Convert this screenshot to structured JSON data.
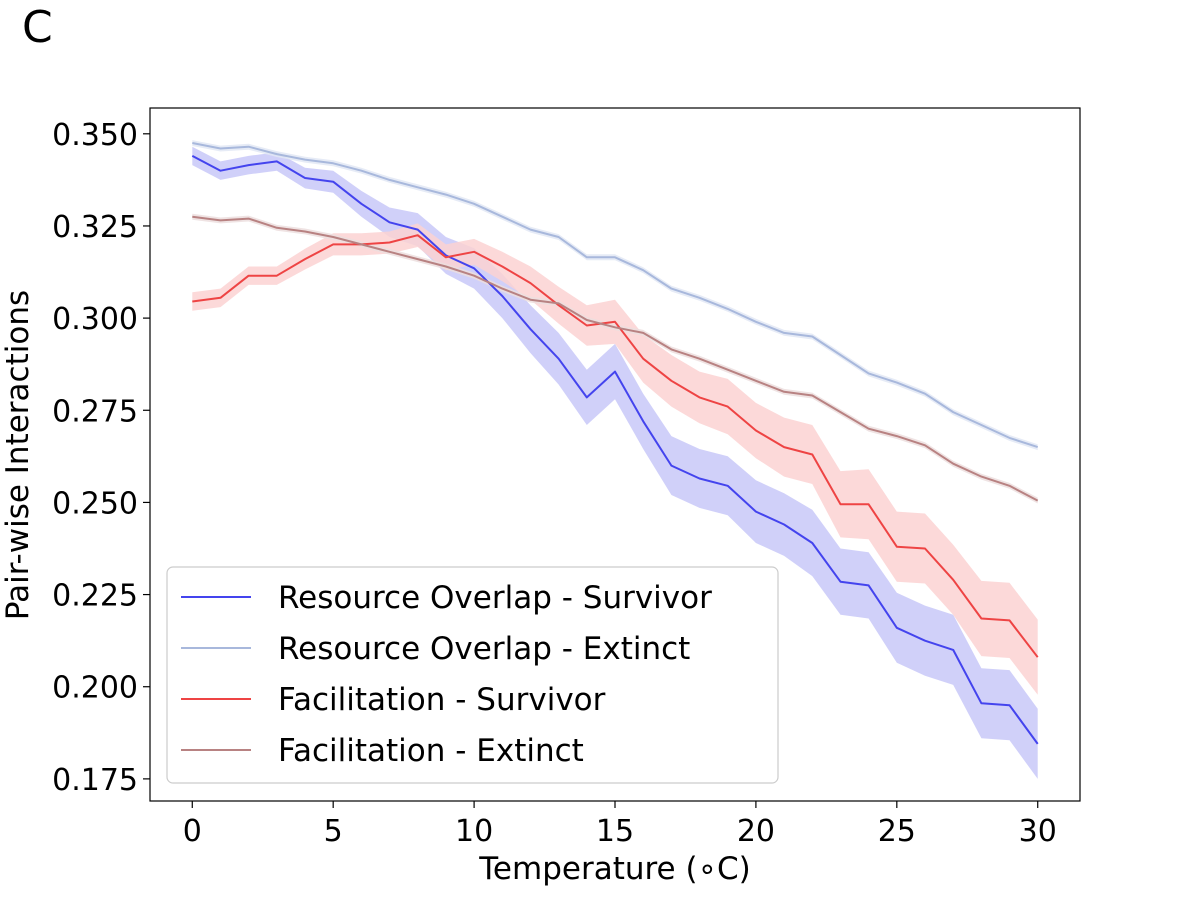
{
  "panel_label": "C",
  "chart_data": {
    "type": "line",
    "xlabel": "Temperature ($^\\circ$C)",
    "xlabel_display": "Temperature (∘C)",
    "ylabel": "Pair-wise Interactions",
    "xlim": [
      -1.5,
      31.5
    ],
    "ylim": [
      0.169,
      0.357
    ],
    "x_ticks": [
      0,
      5,
      10,
      15,
      20,
      25,
      30
    ],
    "x_tick_labels": [
      "0",
      "5",
      "10",
      "15",
      "20",
      "25",
      "30"
    ],
    "y_ticks": [
      0.175,
      0.2,
      0.225,
      0.25,
      0.275,
      0.3,
      0.325,
      0.35
    ],
    "y_tick_labels": [
      "0.175",
      "0.200",
      "0.225",
      "0.250",
      "0.275",
      "0.300",
      "0.325",
      "0.350"
    ],
    "grid": false,
    "legend_position": "lower-left",
    "x": [
      0,
      1,
      2,
      3,
      4,
      5,
      6,
      7,
      8,
      9,
      10,
      11,
      12,
      13,
      14,
      15,
      16,
      17,
      18,
      19,
      20,
      21,
      22,
      23,
      24,
      25,
      26,
      27,
      28,
      29,
      30
    ],
    "series": [
      {
        "name": "Resource Overlap - Survivor",
        "color": "#4444ee",
        "band_color": "#c8c8f8",
        "values": [
          0.344,
          0.34,
          0.3415,
          0.3425,
          0.338,
          0.337,
          0.331,
          0.326,
          0.324,
          0.317,
          0.3135,
          0.306,
          0.297,
          0.289,
          0.2785,
          0.2855,
          0.272,
          0.26,
          0.2565,
          0.2545,
          0.2475,
          0.244,
          0.239,
          0.2285,
          0.2275,
          0.216,
          0.2125,
          0.21,
          0.1955,
          0.195,
          0.1845
        ],
        "band": [
          0.0025,
          0.0025,
          0.0025,
          0.0025,
          0.0028,
          0.003,
          0.0035,
          0.004,
          0.0045,
          0.005,
          0.0055,
          0.006,
          0.0065,
          0.007,
          0.0075,
          0.0075,
          0.0075,
          0.008,
          0.008,
          0.008,
          0.0085,
          0.0085,
          0.009,
          0.009,
          0.009,
          0.0095,
          0.0095,
          0.0095,
          0.0095,
          0.0095,
          0.0095
        ]
      },
      {
        "name": "Resource Overlap - Extinct",
        "color": "#a8b8dc",
        "band_color": "#e2e8f5",
        "values": [
          0.3475,
          0.346,
          0.3465,
          0.3445,
          0.343,
          0.342,
          0.34,
          0.3375,
          0.3355,
          0.3335,
          0.331,
          0.3275,
          0.324,
          0.322,
          0.3165,
          0.3165,
          0.313,
          0.308,
          0.3055,
          0.3025,
          0.299,
          0.296,
          0.295,
          0.29,
          0.285,
          0.2825,
          0.2795,
          0.2745,
          0.271,
          0.2675,
          0.265
        ],
        "band": [
          0.0008,
          0.0008,
          0.0008,
          0.0008,
          0.0008,
          0.0008,
          0.0008,
          0.0008,
          0.0008,
          0.0008,
          0.0008,
          0.0008,
          0.0008,
          0.0008,
          0.0008,
          0.0008,
          0.0008,
          0.0008,
          0.0008,
          0.0008,
          0.0008,
          0.0008,
          0.0008,
          0.0008,
          0.0008,
          0.0008,
          0.0008,
          0.0008,
          0.0008,
          0.0008,
          0.0008
        ]
      },
      {
        "name": "Facilitation - Survivor",
        "color": "#ee4444",
        "band_color": "#fbd2d2",
        "values": [
          0.3045,
          0.3055,
          0.3115,
          0.3115,
          0.316,
          0.32,
          0.32,
          0.3205,
          0.3225,
          0.3165,
          0.318,
          0.314,
          0.3095,
          0.3035,
          0.298,
          0.299,
          0.289,
          0.283,
          0.2785,
          0.276,
          0.2695,
          0.265,
          0.263,
          0.2495,
          0.2495,
          0.238,
          0.2375,
          0.229,
          0.2185,
          0.218,
          0.208
        ],
        "band": [
          0.0025,
          0.0025,
          0.0025,
          0.0025,
          0.0028,
          0.003,
          0.003,
          0.003,
          0.0032,
          0.0035,
          0.0035,
          0.004,
          0.0045,
          0.005,
          0.0055,
          0.006,
          0.0065,
          0.007,
          0.007,
          0.0075,
          0.0075,
          0.008,
          0.008,
          0.009,
          0.0095,
          0.0095,
          0.0095,
          0.0095,
          0.0102,
          0.0102,
          0.0102
        ]
      },
      {
        "name": "Facilitation - Extinct",
        "color": "#b88282",
        "band_color": "#ecdede",
        "values": [
          0.3275,
          0.3265,
          0.327,
          0.3245,
          0.3235,
          0.322,
          0.32,
          0.318,
          0.316,
          0.314,
          0.3115,
          0.308,
          0.305,
          0.304,
          0.2995,
          0.2975,
          0.296,
          0.2915,
          0.289,
          0.286,
          0.283,
          0.28,
          0.279,
          0.2745,
          0.27,
          0.268,
          0.2655,
          0.2605,
          0.257,
          0.2545,
          0.2505
        ],
        "band": [
          0.0008,
          0.0008,
          0.0008,
          0.0008,
          0.0008,
          0.0008,
          0.0008,
          0.0008,
          0.0008,
          0.0008,
          0.0008,
          0.0008,
          0.0008,
          0.0008,
          0.0008,
          0.0008,
          0.0008,
          0.0008,
          0.0008,
          0.0008,
          0.0008,
          0.0008,
          0.0008,
          0.0008,
          0.0008,
          0.0008,
          0.0008,
          0.0008,
          0.0008,
          0.0008,
          0.0008
        ]
      }
    ]
  }
}
